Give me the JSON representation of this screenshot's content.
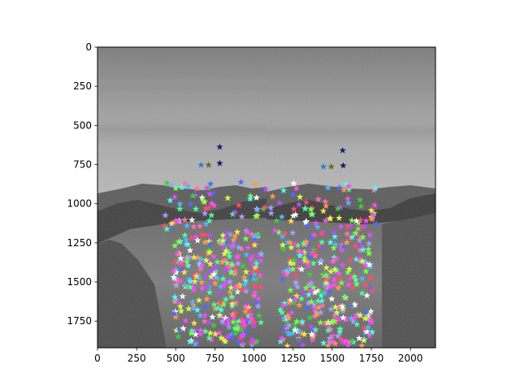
{
  "chart_data": {
    "type": "scatter",
    "title": "",
    "xlabel": "",
    "ylabel": "",
    "xlim": [
      0,
      2160
    ],
    "ylim": [
      1920,
      0
    ],
    "y_inverted": true,
    "grid": false,
    "legend": "none",
    "x_ticks": [
      0,
      250,
      500,
      750,
      1000,
      1250,
      1500,
      1750,
      2000
    ],
    "y_ticks": [
      0,
      250,
      500,
      750,
      1000,
      1250,
      1500,
      1750
    ],
    "marker": "star",
    "background": "side-by-side grayscale photographs of a grassy mountain summit under a cloudy sky",
    "highlighted_points": [
      {
        "x": 781,
        "y": 638,
        "color": "#1a1a80"
      },
      {
        "x": 662,
        "y": 753,
        "color": "#2a7fd5"
      },
      {
        "x": 710,
        "y": 753,
        "color": "#6b6b1f"
      },
      {
        "x": 781,
        "y": 742,
        "color": "#1a1a60"
      },
      {
        "x": 1567,
        "y": 660,
        "color": "#1a1a80"
      },
      {
        "x": 1444,
        "y": 764,
        "color": "#2a7fd5"
      },
      {
        "x": 1494,
        "y": 764,
        "color": "#6b6b1f"
      },
      {
        "x": 1570,
        "y": 757,
        "color": "#1a1a60"
      }
    ],
    "keypoint_regions": [
      {
        "image": "left",
        "x_range": [
          420,
          1080
        ],
        "y_range": [
          860,
          1910
        ],
        "count": 380
      },
      {
        "image": "right",
        "x_range": [
          1100,
          1790
        ],
        "y_range": [
          870,
          1910
        ],
        "count": 380
      }
    ],
    "palette": [
      "#ff4df0",
      "#7cff4d",
      "#4dfff0",
      "#ffe24d",
      "#4d6bff",
      "#ff4d6b",
      "#b84dff",
      "#4dff9a",
      "#ffffff",
      "#a0a0ff",
      "#ff9a4d",
      "#3ad13a",
      "#e64dff",
      "#4db8ff",
      "#d4ff4d",
      "#ff70b0"
    ]
  }
}
